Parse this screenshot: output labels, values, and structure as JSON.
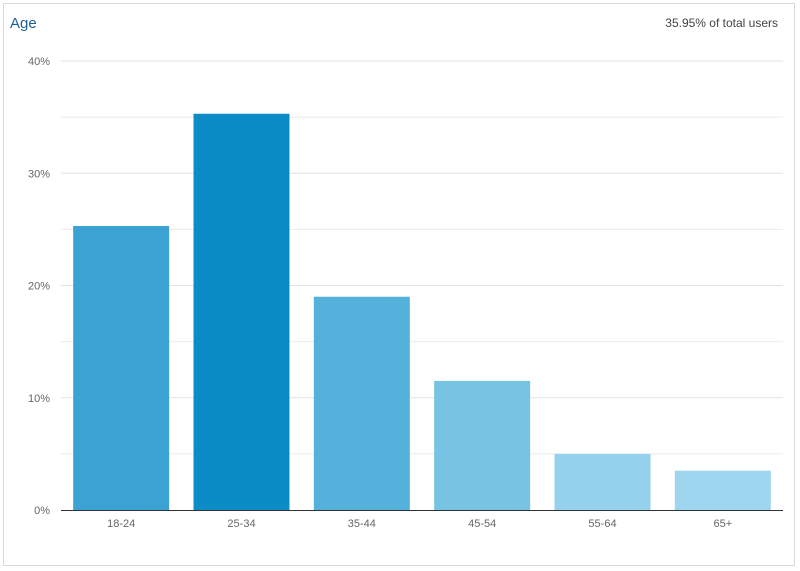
{
  "header": {
    "title": "Age",
    "subtitle": "35.95% of total users"
  },
  "chart_data": {
    "type": "bar",
    "title": "Age",
    "xlabel": "",
    "ylabel": "",
    "categories": [
      "18-24",
      "25-34",
      "35-44",
      "45-54",
      "55-64",
      "65+"
    ],
    "values": [
      25.3,
      35.3,
      19.0,
      11.5,
      5.0,
      3.5
    ],
    "unit": "%",
    "ylim": [
      0,
      40
    ],
    "yticks": [
      0,
      10,
      20,
      30,
      40
    ],
    "ytick_labels": [
      "0%",
      "10%",
      "20%",
      "30%",
      "40%"
    ],
    "grid": true,
    "legend": "none",
    "colors": [
      "#3aa3d4",
      "#0b8cc7",
      "#53b1db",
      "#76c3e4",
      "#93d1ec",
      "#9dd6ee"
    ]
  }
}
